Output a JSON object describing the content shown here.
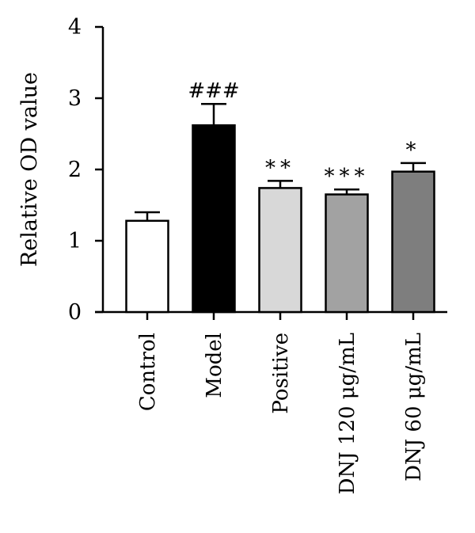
{
  "chart_data": {
    "type": "bar",
    "title": "",
    "xlabel": "",
    "ylabel": "Relative OD value",
    "ylim": [
      0,
      4
    ],
    "yticks": [
      "0",
      "1",
      "2",
      "3",
      "4"
    ],
    "categories": [
      "Control",
      "Model",
      "Positive",
      "DNJ 120 μg/mL",
      "DNJ 60 μg/mL"
    ],
    "values": [
      1.28,
      2.62,
      1.74,
      1.65,
      1.97
    ],
    "errors": [
      0.12,
      0.3,
      0.1,
      0.07,
      0.12
    ],
    "annotations": [
      "",
      "###",
      "**",
      "***",
      "*"
    ],
    "colors": [
      "#ffffff",
      "#000000",
      "#d8d8d8",
      "#a2a2a2",
      "#7e7e7e"
    ],
    "grid": false,
    "legend": "none"
  }
}
